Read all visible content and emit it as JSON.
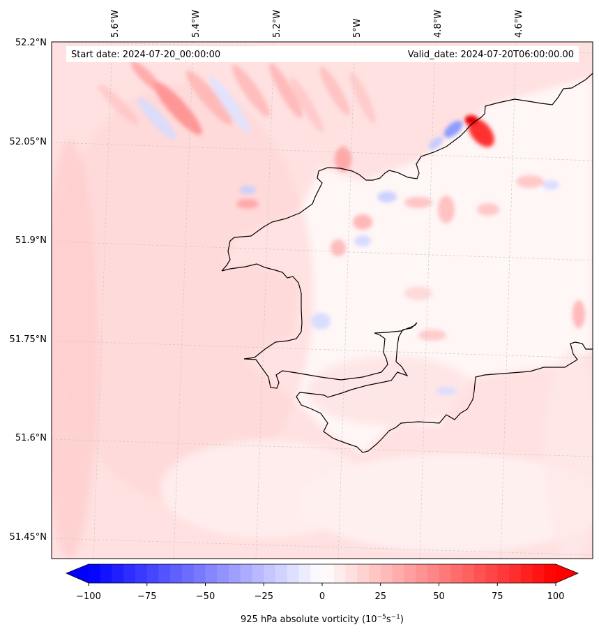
{
  "map": {
    "start_label": "Start date: 2024-07-20_00:00:00",
    "valid_label": "Valid_date: 2024-07-20T06:00:00.00",
    "lon_labels": [
      "5.6°W",
      "5.4°W",
      "5.2°W",
      "5°W",
      "4.8°W",
      "4.6°W"
    ],
    "lat_labels": [
      "52.2°N",
      "52.05°N",
      "51.9°N",
      "51.75°N",
      "51.6°N",
      "51.45°N"
    ],
    "field": "925 hPa absolute vorticity",
    "field_colormap": "bwr",
    "background_color": "#ffe0e0",
    "coastline_color": "#000000"
  },
  "colorbar": {
    "ticks": [
      "−100",
      "−75",
      "−50",
      "−25",
      "0",
      "25",
      "50",
      "75",
      "100"
    ],
    "tick_values": [
      -100,
      -75,
      -50,
      -25,
      0,
      25,
      50,
      75,
      100
    ],
    "vmin": -100,
    "vmax": 100,
    "extend": "both",
    "label_main": "925 hPa absolute vorticity (10",
    "label_exp1": "−5",
    "label_mid": "s",
    "label_exp2": "−1",
    "label_close": ")"
  }
}
